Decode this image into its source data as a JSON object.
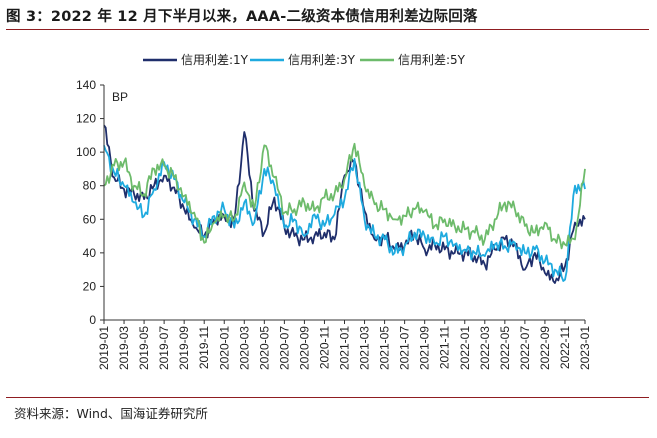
{
  "figure": {
    "title": "图 3：2022 年 12 月下半月以来，AAA-二级资本债信用利差边际回落",
    "source": "资料来源：Wind、国海证券研究所"
  },
  "chart_data": {
    "type": "line",
    "title": "",
    "xlabel": "",
    "ylabel": "BP",
    "ylim": [
      0,
      140
    ],
    "yticks": [
      0,
      20,
      40,
      60,
      80,
      100,
      120,
      140
    ],
    "grid": false,
    "legend_position": "top",
    "x_tick_labels": [
      "2019-01",
      "2019-03",
      "2019-05",
      "2019-07",
      "2019-09",
      "2019-11",
      "2020-01",
      "2020-03",
      "2020-05",
      "2020-07",
      "2020-09",
      "2020-11",
      "2021-01",
      "2021-03",
      "2021-05",
      "2021-07",
      "2021-09",
      "2021-11",
      "2022-01",
      "2022-03",
      "2022-05",
      "2022-07",
      "2022-09",
      "2022-11",
      "2023-01"
    ],
    "x": [
      "2019-01",
      "2019-02",
      "2019-03",
      "2019-04",
      "2019-05",
      "2019-06",
      "2019-07",
      "2019-08",
      "2019-09",
      "2019-10",
      "2019-11",
      "2019-12",
      "2020-01",
      "2020-02",
      "2020-03",
      "2020-04",
      "2020-05",
      "2020-06",
      "2020-07",
      "2020-08",
      "2020-09",
      "2020-10",
      "2020-11",
      "2020-12",
      "2021-01",
      "2021-02",
      "2021-03",
      "2021-04",
      "2021-05",
      "2021-06",
      "2021-07",
      "2021-08",
      "2021-09",
      "2021-10",
      "2021-11",
      "2021-12",
      "2022-01",
      "2022-02",
      "2022-03",
      "2022-04",
      "2022-05",
      "2022-06",
      "2022-07",
      "2022-08",
      "2022-09",
      "2022-10",
      "2022-11",
      "2022-12",
      "2023-01"
    ],
    "series": [
      {
        "name": "信用利差:1Y",
        "color": "#1f2e6b",
        "values": [
          116,
          85,
          78,
          75,
          72,
          80,
          86,
          79,
          66,
          55,
          50,
          60,
          62,
          58,
          112,
          65,
          52,
          73,
          55,
          50,
          48,
          50,
          52,
          48,
          86,
          95,
          65,
          48,
          50,
          42,
          44,
          52,
          42,
          45,
          42,
          40,
          40,
          38,
          33,
          42,
          48,
          45,
          30,
          40,
          28,
          22,
          32,
          58,
          60
        ]
      },
      {
        "name": "信用利差:3Y",
        "color": "#1eaadf",
        "values": [
          104,
          88,
          80,
          70,
          62,
          78,
          94,
          84,
          70,
          60,
          50,
          62,
          66,
          55,
          70,
          58,
          90,
          80,
          55,
          60,
          50,
          63,
          56,
          63,
          72,
          96,
          60,
          50,
          48,
          40,
          44,
          52,
          50,
          45,
          50,
          45,
          42,
          40,
          38,
          45,
          44,
          46,
          40,
          42,
          35,
          30,
          24,
          80,
          78
        ]
      },
      {
        "name": "信用利差:5Y",
        "color": "#6dbb6b",
        "values": [
          80,
          92,
          94,
          80,
          75,
          90,
          92,
          85,
          74,
          64,
          46,
          58,
          62,
          60,
          82,
          66,
          104,
          85,
          64,
          66,
          70,
          65,
          73,
          75,
          84,
          105,
          80,
          69,
          66,
          60,
          62,
          66,
          65,
          56,
          60,
          56,
          54,
          52,
          48,
          60,
          70,
          66,
          56,
          52,
          58,
          48,
          45,
          48,
          90
        ]
      }
    ]
  }
}
